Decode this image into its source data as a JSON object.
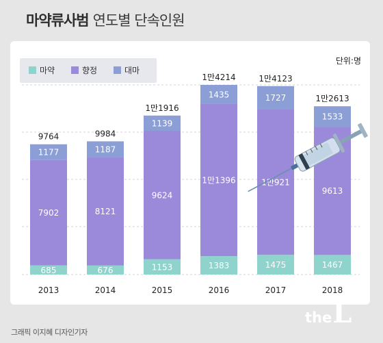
{
  "header": {
    "title_bold": "마약류사범",
    "title_light": "연도별 단속인원"
  },
  "credit": "그래픽 이지혜 디자인기자",
  "logo": {
    "part1": "the",
    "part2": "L"
  },
  "colors": {
    "background": "#e6e6e6",
    "panel": "#ffffff",
    "narcotics": "#8fd3cd",
    "psychotropic": "#9b8ad9",
    "cannabis": "#8b9fd6",
    "segment_label": "#ffffff",
    "total_label": "#222222"
  },
  "chart_data": {
    "type": "bar",
    "stacked": true,
    "unit_label": "단위:명",
    "categories": [
      "2013",
      "2014",
      "2015",
      "2016",
      "2017",
      "2018"
    ],
    "series": [
      {
        "name": "마약",
        "color": "#8fd3cd",
        "values": [
          685,
          676,
          1153,
          1383,
          1475,
          1467
        ],
        "labels": [
          "685",
          "676",
          "1153",
          "1383",
          "1475",
          "1467"
        ]
      },
      {
        "name": "향정",
        "color": "#9b8ad9",
        "values": [
          7902,
          8121,
          9624,
          11396,
          10921,
          9613
        ],
        "labels": [
          "7902",
          "8121",
          "9624",
          "1만1396",
          "1만921",
          "9613"
        ]
      },
      {
        "name": "대마",
        "color": "#8b9fd6",
        "values": [
          1177,
          1187,
          1139,
          1435,
          1727,
          1533
        ],
        "labels": [
          "1177",
          "1187",
          "1139",
          "1435",
          "1727",
          "1533"
        ]
      }
    ],
    "totals": [
      9764,
      9984,
      11916,
      14214,
      14123,
      12613
    ],
    "total_labels": [
      "9764",
      "9984",
      "1만1916",
      "1만4214",
      "1만4123",
      "1만2613"
    ],
    "ylim": [
      0,
      14214
    ],
    "grid": true,
    "legend": "top-left",
    "decoration": "syringe-icon"
  }
}
